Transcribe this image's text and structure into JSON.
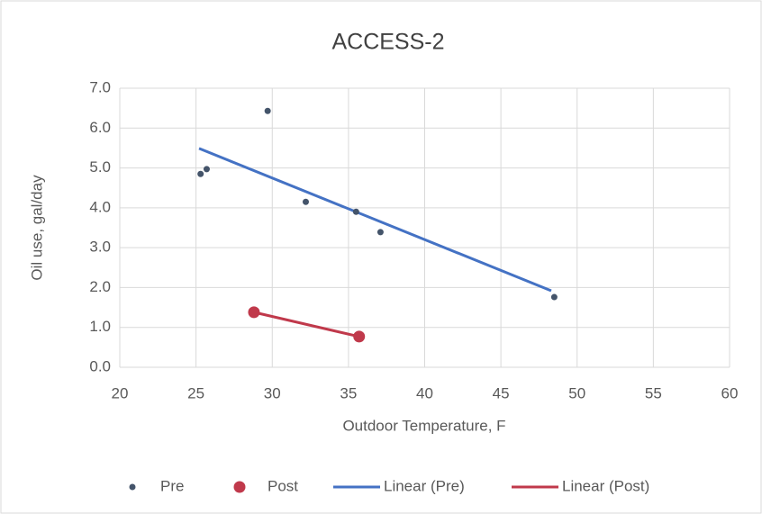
{
  "chart_data": {
    "type": "scatter",
    "title": "ACCESS-2",
    "xlabel": "Outdoor Temperature, F",
    "ylabel": "Oil use, gal/day",
    "xlim": [
      20,
      60
    ],
    "xticks": [
      20,
      25,
      30,
      35,
      40,
      45,
      50,
      55,
      60
    ],
    "ylim": [
      0,
      7
    ],
    "yticks": [
      {
        "value": 0,
        "label": "0.0"
      },
      {
        "value": 1,
        "label": "1.0"
      },
      {
        "value": 2,
        "label": "2.0"
      },
      {
        "value": 3,
        "label": "3.0"
      },
      {
        "value": 4,
        "label": "4.0"
      },
      {
        "value": 5,
        "label": "5.0"
      },
      {
        "value": 6,
        "label": "6.0"
      },
      {
        "value": 7,
        "label": "7.0"
      }
    ],
    "grid": true,
    "legend": "bottom",
    "series": [
      {
        "name": "Pre",
        "mode": "markers",
        "color": "#44546a",
        "x": [
          25.3,
          25.7,
          29.7,
          32.2,
          35.5,
          37.1,
          48.5
        ],
        "values": [
          4.85,
          4.97,
          6.43,
          4.15,
          3.9,
          3.39,
          1.76
        ]
      },
      {
        "name": "Post",
        "mode": "markers",
        "color": "#c0394b",
        "x": [
          28.8,
          35.7
        ],
        "values": [
          1.38,
          0.77
        ]
      },
      {
        "name": "Linear (Pre)",
        "mode": "line",
        "color": "#4472c4",
        "x": [
          25.2,
          48.3
        ],
        "values": [
          5.49,
          1.92
        ]
      },
      {
        "name": "Linear (Post)",
        "mode": "line",
        "color": "#c0394b",
        "x": [
          28.8,
          35.7
        ],
        "values": [
          1.38,
          0.77
        ]
      }
    ]
  }
}
